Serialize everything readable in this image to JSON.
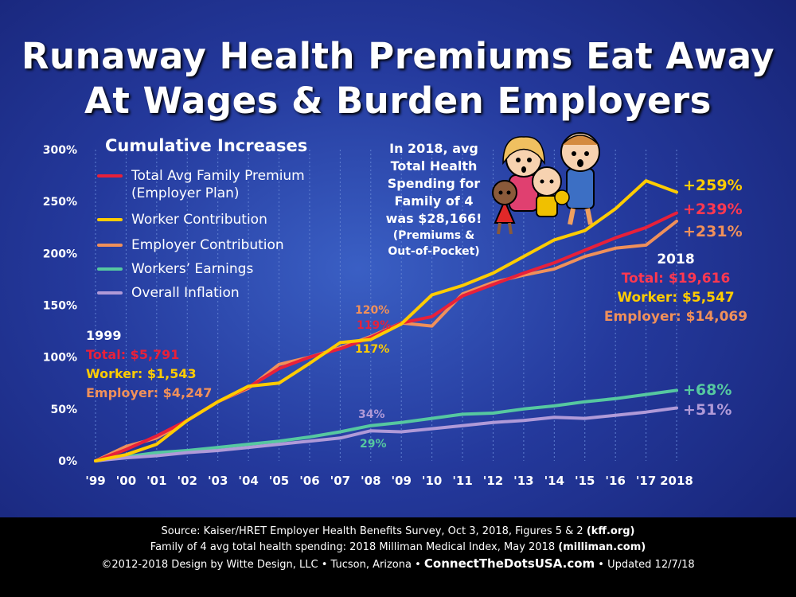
{
  "title": {
    "line1": "Runaway Health Premiums Eat Away",
    "line2": "At Wages & Burden Employers"
  },
  "chart_data": {
    "type": "line",
    "title": "Cumulative Increases",
    "ylim": [
      0,
      300
    ],
    "yticks": [
      "0%",
      "50%",
      "100%",
      "150%",
      "200%",
      "250%",
      "300%"
    ],
    "x": [
      "'99",
      "'00",
      "'01",
      "'02",
      "'03",
      "'04",
      "'05",
      "'06",
      "'07",
      "'08",
      "'09",
      "'10",
      "'11",
      "'12",
      "'13",
      "'14",
      "'15",
      "'16",
      "'17",
      "2018"
    ],
    "series": [
      {
        "name": "Total Avg Family Premium",
        "name2": "(Employer Plan)",
        "color": "#e8203a",
        "values": [
          0,
          11,
          24,
          39,
          57,
          71,
          89,
          100,
          108,
          119,
          133,
          139,
          159,
          170,
          181,
          191,
          203,
          215,
          225,
          239
        ]
      },
      {
        "name": "Worker Contribution",
        "color": "#ffcc00",
        "values": [
          0,
          6,
          16,
          39,
          57,
          72,
          75,
          94,
          114,
          117,
          132,
          160,
          169,
          181,
          197,
          213,
          222,
          243,
          270,
          259
        ]
      },
      {
        "name": "Employer Contribution",
        "color": "#f0905a",
        "values": [
          0,
          14,
          22,
          39,
          57,
          70,
          93,
          100,
          109,
          120,
          133,
          130,
          161,
          172,
          179,
          185,
          197,
          205,
          208,
          231
        ]
      },
      {
        "name": "Workers’ Earnings",
        "color": "#56c8a0",
        "values": [
          0,
          4,
          8,
          10,
          13,
          16,
          19,
          23,
          28,
          34,
          37,
          41,
          45,
          46,
          50,
          53,
          57,
          60,
          64,
          68
        ]
      },
      {
        "name": "Overall Inflation",
        "color": "#b09ad8",
        "values": [
          0,
          3,
          5,
          8,
          10,
          13,
          16,
          19,
          22,
          29,
          28,
          31,
          34,
          37,
          39,
          42,
          41,
          44,
          47,
          51
        ]
      }
    ],
    "end_labels": [
      "+259%",
      "+239%",
      "+231%",
      "+68%",
      "+51%"
    ],
    "point_labels": [
      "120%",
      "119%",
      "117%",
      "34%",
      "29%"
    ]
  },
  "callout": {
    "l1": "In 2018, avg",
    "l2": "Total Health",
    "l3": "Spending for",
    "l4": "Family of 4",
    "l5": "was $28,166!",
    "l6": "(Premiums &",
    "l7": "Out-of-Pocket)"
  },
  "box1999": {
    "year": "1999",
    "total": "Total: $5,791",
    "worker": "Worker: $1,543",
    "employer": "Employer: $4,247"
  },
  "box2018": {
    "year": "2018",
    "total": "Total: $19,616",
    "worker": "Worker: $5,547",
    "employer": "Employer: $14,069"
  },
  "footer": {
    "l1a": "Source: Kaiser/HRET Employer Health Benefits Survey, Oct 3, 2018, Figures 5 & 2 ",
    "l1b": "(kff.org)",
    "l2a": "Family of 4 avg total health spending: 2018 Milliman Medical Index, May 2018 ",
    "l2b": "(milliman.com)",
    "l3a": "©2012-2018 Design by Witte Design, LLC • Tucson, Arizona • ",
    "l3b": "ConnectTheDotsUSA.com",
    "l3c": " • Updated 12/7/18"
  },
  "icons": {
    "illustration": "family-cartoon-illustration"
  }
}
